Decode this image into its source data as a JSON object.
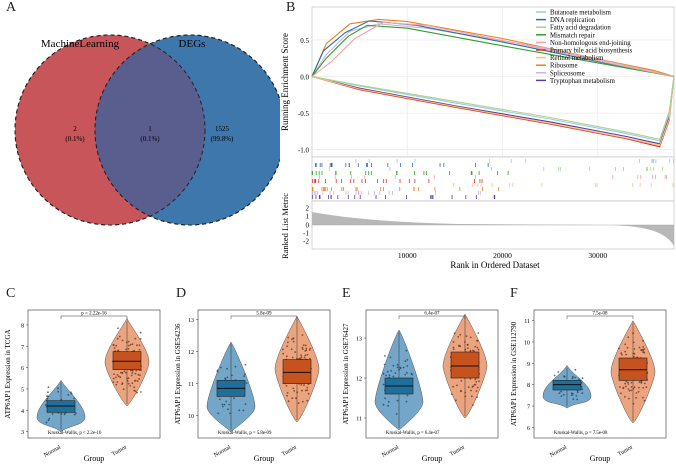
{
  "panels": {
    "A": {
      "label": "A",
      "venn": {
        "left_name": "MachineLearning",
        "right_name": "DEGs",
        "left_count": "2",
        "left_pct": "(0.1%)",
        "mid_count": "1",
        "mid_pct": "(0.1%)",
        "right_count": "1525",
        "right_pct": "(99.8%)",
        "left_color": "#c8555a",
        "right_color": "#3e77ab",
        "overlap_color": "#595e8f"
      }
    },
    "B": {
      "label": "B",
      "ylabel_top": "Running Enrichment Score",
      "ylabel_bottom": "Ranked List Metric",
      "xlabel": "Rank in Ordered Dataset",
      "yticks_top": [
        "0.5",
        "0.0",
        "-0.5",
        "-1.0"
      ],
      "yticks_bottom": [
        "2",
        "1",
        "0",
        "-1",
        "-2"
      ],
      "xticks": [
        "10000",
        "20000",
        "30000"
      ],
      "legend": [
        {
          "name": "Butanoate metabolism",
          "color": "#9ecae1"
        },
        {
          "name": "DNA replication",
          "color": "#2b6fb2"
        },
        {
          "name": "Fatty acid degradation",
          "color": "#a6d38e"
        },
        {
          "name": "Mismatch repair",
          "color": "#2ca02c"
        },
        {
          "name": "Non-homologous end-joining",
          "color": "#f4a3a3"
        },
        {
          "name": "Primary bile acid biosynthesis",
          "color": "#e03030"
        },
        {
          "name": "Retinol metabolism",
          "color": "#f6c27a"
        },
        {
          "name": "Ribosome",
          "color": "#f07f1a"
        },
        {
          "name": "Spliceosome",
          "color": "#c9b3dd"
        },
        {
          "name": "Tryptophan metabolism",
          "color": "#5a3d96"
        }
      ]
    },
    "C": {
      "label": "C",
      "ylabel": "ATP6AP1 Expression in TCGA",
      "xlabel": "Group",
      "groups": [
        "Normal",
        "Tumor"
      ],
      "yticks": [
        "3",
        "4",
        "5",
        "6",
        "7",
        "8"
      ],
      "pvalue": "p = 2.22e-16",
      "test": "Kruskal-Wallis, p < 2.2e-16"
    },
    "D": {
      "label": "D",
      "ylabel": "ATP6AP1 Expression in GSE54236",
      "xlabel": "Group",
      "groups": [
        "Normal",
        "Tumor"
      ],
      "yticks": [
        "10",
        "11",
        "12",
        "13"
      ],
      "pvalue": "5.8e-09",
      "test": "Kruskal-Wallis, p = 5.8e-09"
    },
    "E": {
      "label": "E",
      "ylabel": "ATP6AP1 Expression in GSE76427",
      "xlabel": "Group",
      "groups": [
        "Normal",
        "Tumor"
      ],
      "yticks": [
        "11",
        "12",
        "13"
      ],
      "pvalue": "6.4e-07",
      "test": "Kruskal-Wallis, p = 6.4e-07"
    },
    "F": {
      "label": "F",
      "ylabel": "ATP6AP1 Expression in GSE112790",
      "xlabel": "Group",
      "groups": [
        "Normal",
        "Tumor"
      ],
      "yticks": [
        "6",
        "7",
        "8",
        "9",
        "10",
        "11"
      ],
      "pvalue": "7.5e-08",
      "test": "Kruskal-Wallis, p = 7.5e-08"
    }
  },
  "chart_data": [
    {
      "type": "venn",
      "title": "A",
      "sets": [
        "MachineLearning",
        "DEGs"
      ],
      "regions": [
        {
          "set": "MachineLearning only",
          "count": 2,
          "percent": 0.1
        },
        {
          "set": "Both",
          "count": 1,
          "percent": 0.1
        },
        {
          "set": "DEGs only",
          "count": 1525,
          "percent": 99.8
        }
      ]
    },
    {
      "type": "line",
      "title": "B",
      "xlabel": "Rank in Ordered Dataset",
      "ylabel": "Running Enrichment Score",
      "xlim": [
        0,
        38000
      ],
      "ylim": [
        -1.1,
        0.95
      ],
      "series": [
        {
          "name": "Ribosome",
          "color": "#f07f1a",
          "x": [
            0,
            1500,
            4000,
            7000,
            10000,
            20000,
            30000,
            36000,
            38000
          ],
          "y": [
            0,
            0.45,
            0.72,
            0.78,
            0.75,
            0.52,
            0.24,
            0.08,
            0
          ]
        },
        {
          "name": "Spliceosome",
          "color": "#c9b3dd",
          "x": [
            0,
            1500,
            4000,
            7000,
            12000,
            24000,
            34000,
            38000
          ],
          "y": [
            0,
            0.3,
            0.62,
            0.72,
            0.66,
            0.4,
            0.12,
            0
          ]
        },
        {
          "name": "DNA replication",
          "color": "#2b6fb2",
          "x": [
            0,
            1200,
            3500,
            6000,
            11000,
            22000,
            32000,
            38000
          ],
          "y": [
            0,
            0.35,
            0.6,
            0.76,
            0.7,
            0.42,
            0.15,
            0
          ]
        },
        {
          "name": "Mismatch repair",
          "color": "#2ca02c",
          "x": [
            0,
            1500,
            3800,
            5800,
            10000,
            20000,
            32000,
            38000
          ],
          "y": [
            0,
            0.25,
            0.55,
            0.7,
            0.66,
            0.42,
            0.14,
            0
          ]
        },
        {
          "name": "Non-homologous end-joining",
          "color": "#f4a3a3",
          "x": [
            0,
            2000,
            4500,
            7500,
            12000,
            22000,
            32000,
            38000
          ],
          "y": [
            0,
            0.2,
            0.52,
            0.74,
            0.7,
            0.44,
            0.16,
            0
          ]
        },
        {
          "name": "Primary bile acid biosynthesis",
          "color": "#e03030",
          "x": [
            0,
            5000,
            15000,
            25000,
            33000,
            36500,
            37500,
            38000
          ],
          "y": [
            0,
            -0.18,
            -0.42,
            -0.65,
            -0.85,
            -0.96,
            -0.6,
            0
          ]
        },
        {
          "name": "Tryptophan metabolism",
          "color": "#5a3d96",
          "x": [
            0,
            5000,
            15000,
            25000,
            33000,
            36500,
            37500,
            38000
          ],
          "y": [
            0,
            -0.16,
            -0.4,
            -0.62,
            -0.82,
            -0.92,
            -0.55,
            0
          ]
        },
        {
          "name": "Butanoate metabolism",
          "color": "#9ecae1",
          "x": [
            0,
            5000,
            15000,
            25000,
            33000,
            36500,
            37500,
            38000
          ],
          "y": [
            0,
            -0.13,
            -0.36,
            -0.58,
            -0.78,
            -0.88,
            -0.5,
            0
          ]
        },
        {
          "name": "Retinol metabolism",
          "color": "#f6c27a",
          "x": [
            0,
            5000,
            15000,
            25000,
            33000,
            36500,
            37500,
            38000
          ],
          "y": [
            0,
            -0.17,
            -0.41,
            -0.64,
            -0.84,
            -0.94,
            -0.58,
            0
          ]
        },
        {
          "name": "Fatty acid degradation",
          "color": "#a6d38e",
          "x": [
            0,
            5000,
            15000,
            25000,
            33000,
            36500,
            37500,
            38000
          ],
          "y": [
            0,
            -0.12,
            -0.34,
            -0.56,
            -0.76,
            -0.86,
            -0.48,
            0
          ]
        }
      ]
    },
    {
      "type": "violin-box",
      "title": "C",
      "ylabel": "ATP6AP1 Expression in TCGA",
      "xlabel": "Group",
      "categories": [
        "Normal",
        "Tumor"
      ],
      "ylim": [
        2.7,
        8.7
      ],
      "series": [
        {
          "name": "Normal",
          "q1": 3.9,
          "median": 4.2,
          "q3": 4.45,
          "min": 3.0,
          "max": 5.4,
          "color": "#1f6f9a"
        },
        {
          "name": "Tumor",
          "q1": 5.9,
          "median": 6.3,
          "q3": 6.75,
          "min": 4.2,
          "max": 8.3,
          "color": "#c6521e"
        }
      ]
    },
    {
      "type": "violin-box",
      "title": "D",
      "ylabel": "ATP6AP1 Expression in GSE54236",
      "xlabel": "Group",
      "categories": [
        "Normal",
        "Tumor"
      ],
      "ylim": [
        9.3,
        13.3
      ],
      "series": [
        {
          "name": "Normal",
          "q1": 10.6,
          "median": 10.85,
          "q3": 11.1,
          "min": 9.5,
          "max": 12.3,
          "color": "#1f6f9a"
        },
        {
          "name": "Tumor",
          "q1": 11.0,
          "median": 11.35,
          "q3": 11.75,
          "min": 9.8,
          "max": 13.1,
          "color": "#c6521e"
        }
      ]
    },
    {
      "type": "violin-box",
      "title": "E",
      "ylabel": "ATP6AP1 Expression in GSE76427",
      "xlabel": "Group",
      "categories": [
        "Normal",
        "Tumor"
      ],
      "ylim": [
        10.5,
        13.7
      ],
      "series": [
        {
          "name": "Normal",
          "q1": 11.6,
          "median": 11.8,
          "q3": 12.0,
          "min": 10.7,
          "max": 13.2,
          "color": "#1f6f9a"
        },
        {
          "name": "Tumor",
          "q1": 12.0,
          "median": 12.3,
          "q3": 12.65,
          "min": 11.0,
          "max": 13.6,
          "color": "#c6521e"
        }
      ]
    },
    {
      "type": "violin-box",
      "title": "F",
      "ylabel": "ATP6AP1 Expression in GSE112790",
      "xlabel": "Group",
      "categories": [
        "Normal",
        "Tumor"
      ],
      "ylim": [
        5.5,
        11.5
      ],
      "series": [
        {
          "name": "Normal",
          "q1": 7.75,
          "median": 8.0,
          "q3": 8.2,
          "min": 6.9,
          "max": 8.9,
          "color": "#1f6f9a"
        },
        {
          "name": "Tumor",
          "q1": 8.2,
          "median": 8.7,
          "q3": 9.25,
          "min": 6.2,
          "max": 11.0,
          "color": "#c6521e"
        }
      ]
    }
  ]
}
